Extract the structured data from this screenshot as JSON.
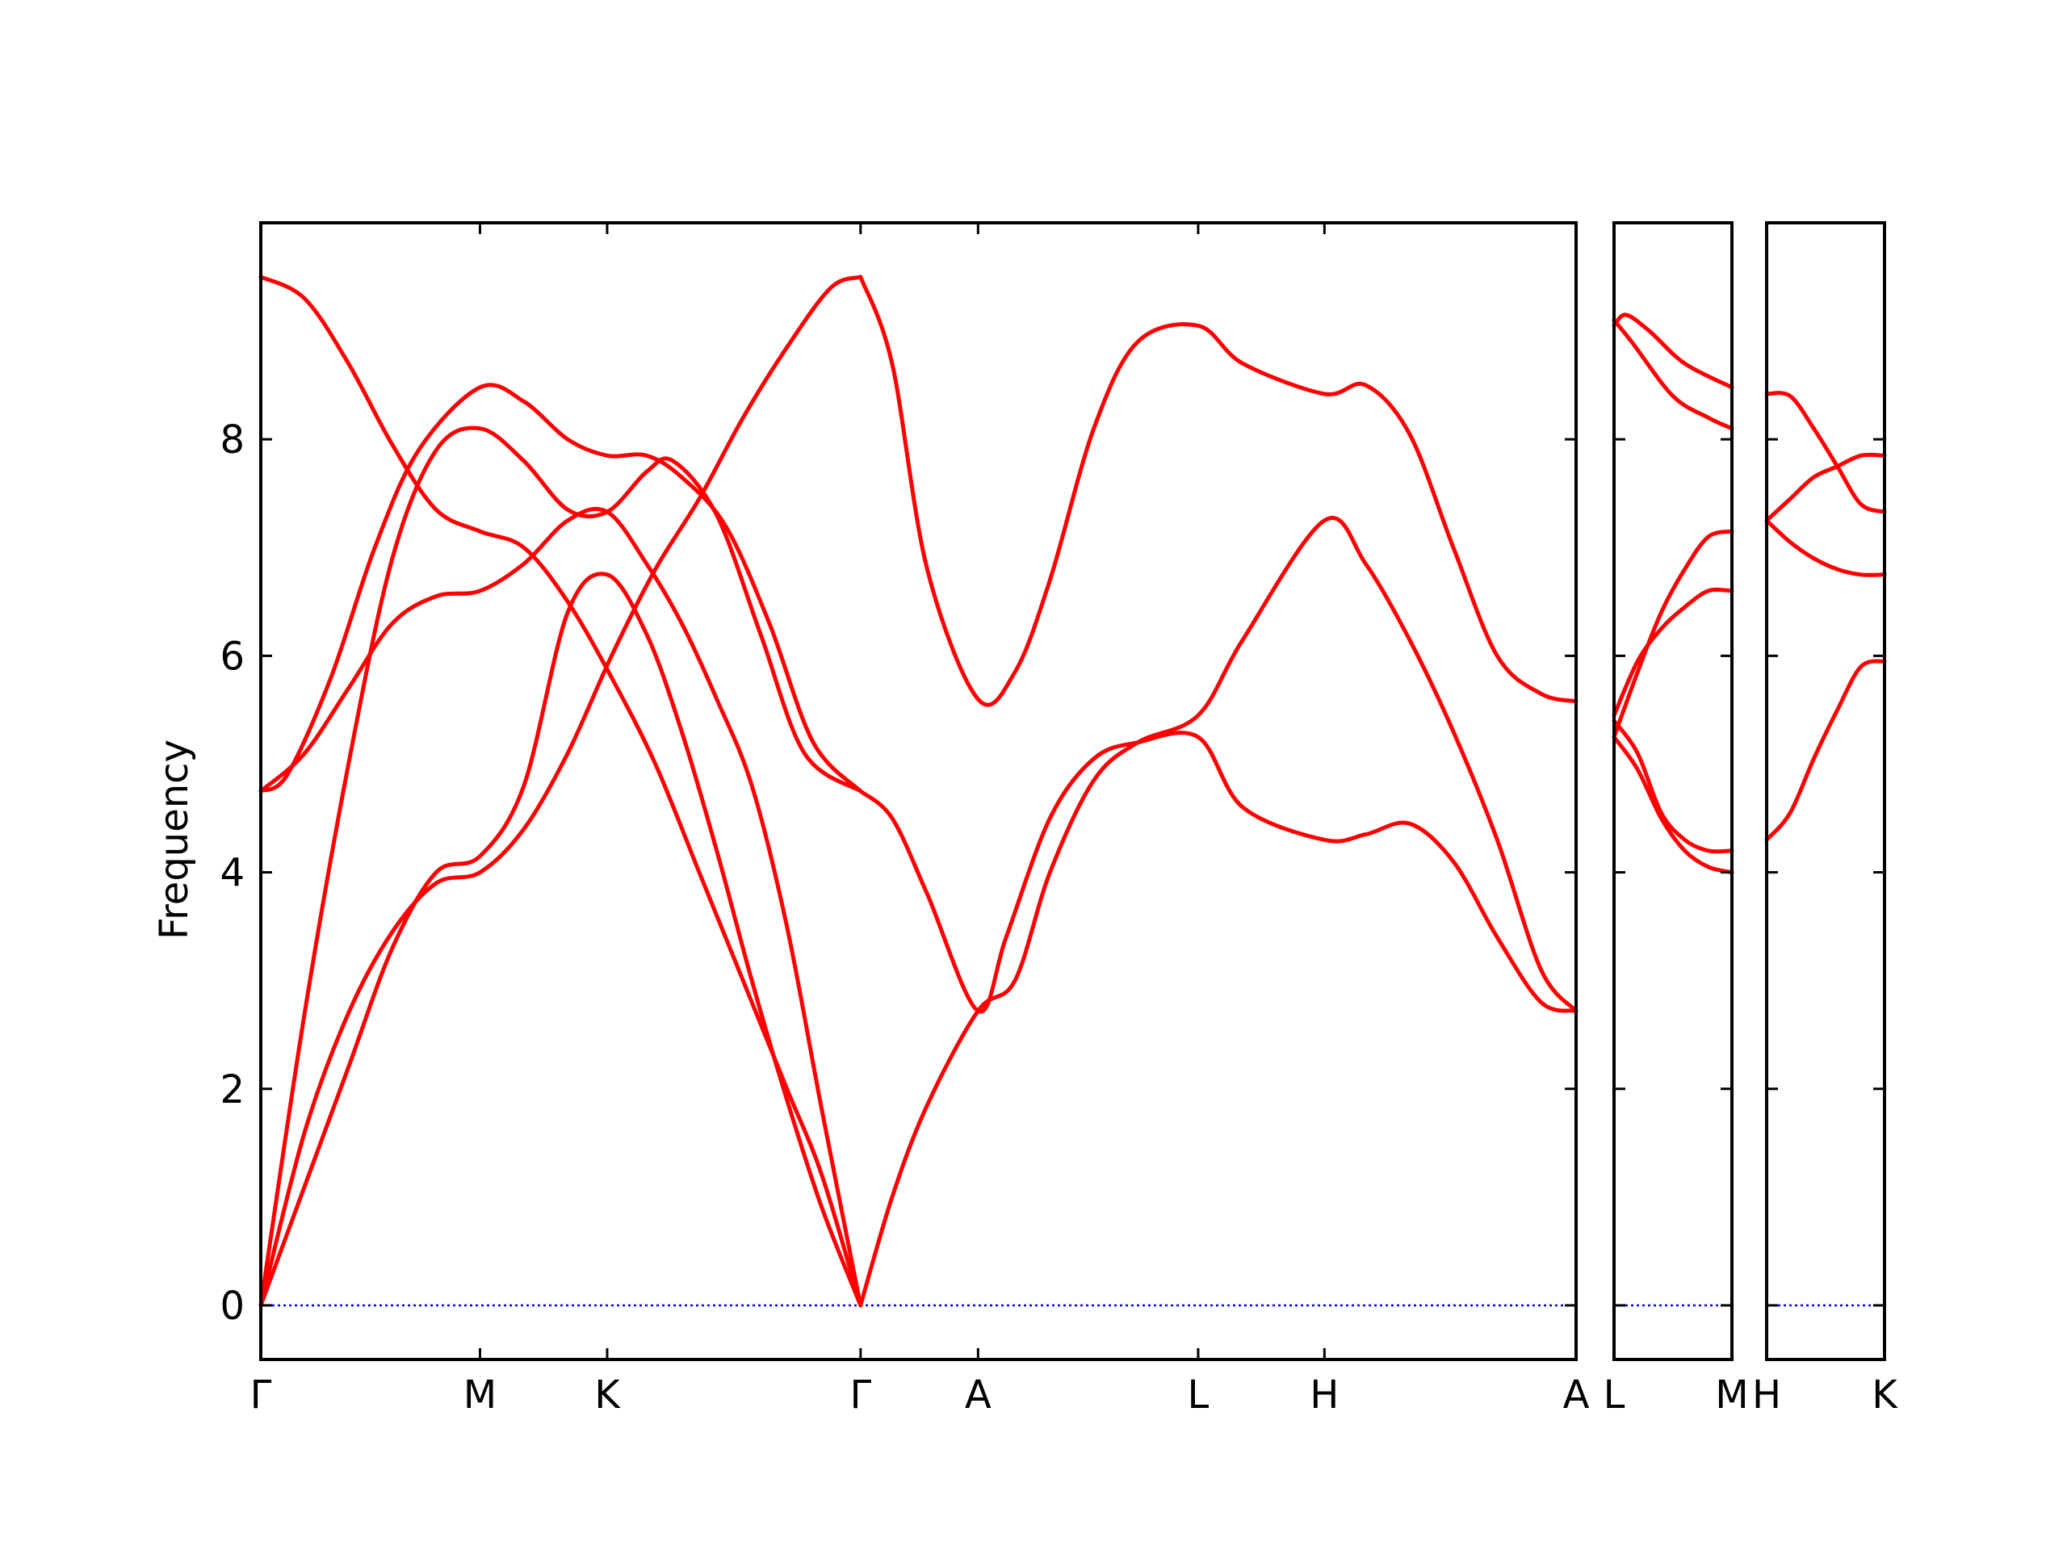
{
  "chart_data": {
    "type": "line",
    "title": "",
    "ylabel": "Frequency",
    "ylim": [
      -0.5,
      10.0
    ],
    "yticks": [
      0,
      2,
      4,
      6,
      8
    ],
    "band_color": "#ff0000",
    "zero_line_color": "#0000ff",
    "panels": [
      {
        "name": "panel-1",
        "xlim": [
          0,
          1.5
        ],
        "ticks": [
          {
            "x": 0.0,
            "label": "Γ"
          },
          {
            "x": 0.25,
            "label": "M"
          },
          {
            "x": 0.395,
            "label": "K"
          },
          {
            "x": 0.684,
            "label": "Γ"
          },
          {
            "x": 0.818,
            "label": "A"
          },
          {
            "x": 1.069,
            "label": "L"
          },
          {
            "x": 1.213,
            "label": "H"
          },
          {
            "x": 1.5,
            "label": "A"
          }
        ],
        "bands": [
          [
            [
              0,
              9.5
            ],
            [
              0.05,
              9.3
            ],
            [
              0.1,
              8.7
            ],
            [
              0.15,
              7.95
            ],
            [
              0.2,
              7.35
            ],
            [
              0.25,
              7.15
            ],
            [
              0.3,
              7.0
            ],
            [
              0.35,
              6.5
            ],
            [
              0.4,
              5.8
            ],
            [
              0.45,
              5.0
            ],
            [
              0.5,
              4.0
            ],
            [
              0.55,
              3.0
            ],
            [
              0.6,
              2.0
            ],
            [
              0.64,
              1.2
            ],
            [
              0.684,
              0
            ]
          ],
          [
            [
              0,
              4.75
            ],
            [
              0.03,
              4.9
            ],
            [
              0.08,
              5.8
            ],
            [
              0.13,
              7.0
            ],
            [
              0.18,
              7.9
            ],
            [
              0.25,
              8.48
            ],
            [
              0.3,
              8.35
            ],
            [
              0.35,
              8.0
            ],
            [
              0.395,
              7.85
            ],
            [
              0.44,
              7.85
            ],
            [
              0.48,
              7.65
            ],
            [
              0.53,
              7.2
            ],
            [
              0.58,
              6.3
            ],
            [
              0.63,
              5.2
            ],
            [
              0.684,
              4.75
            ]
          ],
          [
            [
              0,
              4.75
            ],
            [
              0.05,
              5.1
            ],
            [
              0.1,
              5.7
            ],
            [
              0.15,
              6.3
            ],
            [
              0.2,
              6.55
            ],
            [
              0.25,
              6.6
            ],
            [
              0.3,
              6.85
            ],
            [
              0.35,
              7.25
            ],
            [
              0.395,
              7.33
            ],
            [
              0.44,
              6.85
            ],
            [
              0.48,
              6.3
            ],
            [
              0.52,
              5.6
            ],
            [
              0.56,
              4.8
            ],
            [
              0.6,
              3.5
            ],
            [
              0.64,
              1.8
            ],
            [
              0.684,
              0
            ]
          ],
          [
            [
              0,
              0
            ],
            [
              0.05,
              2.7
            ],
            [
              0.1,
              5.0
            ],
            [
              0.15,
              6.9
            ],
            [
              0.2,
              7.9
            ],
            [
              0.25,
              8.1
            ],
            [
              0.3,
              7.8
            ],
            [
              0.35,
              7.35
            ],
            [
              0.395,
              7.33
            ],
            [
              0.44,
              7.7
            ],
            [
              0.47,
              7.8
            ],
            [
              0.52,
              7.3
            ],
            [
              0.57,
              6.2
            ],
            [
              0.62,
              5.1
            ],
            [
              0.684,
              4.75
            ]
          ],
          [
            [
              0,
              0
            ],
            [
              0.05,
              1.6
            ],
            [
              0.1,
              2.7
            ],
            [
              0.15,
              3.45
            ],
            [
              0.2,
              3.9
            ],
            [
              0.25,
              4.0
            ],
            [
              0.3,
              4.4
            ],
            [
              0.35,
              5.1
            ],
            [
              0.4,
              6.0
            ],
            [
              0.45,
              6.8
            ],
            [
              0.5,
              7.45
            ],
            [
              0.55,
              8.2
            ],
            [
              0.6,
              8.85
            ],
            [
              0.65,
              9.4
            ],
            [
              0.684,
              9.5
            ]
          ],
          [
            [
              0,
              0
            ],
            [
              0.05,
              1.1
            ],
            [
              0.1,
              2.2
            ],
            [
              0.15,
              3.3
            ],
            [
              0.2,
              4.0
            ],
            [
              0.25,
              4.15
            ],
            [
              0.3,
              4.8
            ],
            [
              0.35,
              6.4
            ],
            [
              0.395,
              6.75
            ],
            [
              0.44,
              6.2
            ],
            [
              0.48,
              5.3
            ],
            [
              0.52,
              4.2
            ],
            [
              0.56,
              3.0
            ],
            [
              0.6,
              1.9
            ],
            [
              0.64,
              0.9
            ],
            [
              0.684,
              0
            ]
          ],
          [
            [
              0.684,
              9.5
            ],
            [
              0.72,
              8.7
            ],
            [
              0.76,
              6.8
            ],
            [
              0.818,
              5.6
            ],
            [
              0.86,
              5.85
            ],
            [
              0.9,
              6.7
            ],
            [
              0.95,
              8.1
            ],
            [
              1.0,
              8.9
            ],
            [
              1.069,
              9.05
            ],
            [
              1.12,
              8.7
            ],
            [
              1.213,
              8.42
            ],
            [
              1.26,
              8.5
            ],
            [
              1.31,
              8.05
            ],
            [
              1.36,
              7.0
            ],
            [
              1.41,
              6.0
            ],
            [
              1.46,
              5.65
            ],
            [
              1.5,
              5.58
            ]
          ],
          [
            [
              0.684,
              4.75
            ],
            [
              0.72,
              4.5
            ],
            [
              0.76,
              3.8
            ],
            [
              0.818,
              2.72
            ],
            [
              0.85,
              3.4
            ],
            [
              0.9,
              4.5
            ],
            [
              0.95,
              5.05
            ],
            [
              1.0,
              5.2
            ],
            [
              1.069,
              5.25
            ],
            [
              1.12,
              4.6
            ],
            [
              1.213,
              4.3
            ],
            [
              1.26,
              4.35
            ],
            [
              1.31,
              4.45
            ],
            [
              1.36,
              4.1
            ],
            [
              1.41,
              3.4
            ],
            [
              1.46,
              2.8
            ],
            [
              1.5,
              2.72
            ]
          ],
          [
            [
              0.684,
              0
            ],
            [
              0.72,
              1.0
            ],
            [
              0.76,
              1.85
            ],
            [
              0.818,
              2.72
            ],
            [
              0.86,
              3.0
            ],
            [
              0.9,
              4.0
            ],
            [
              0.95,
              4.85
            ],
            [
              1.0,
              5.2
            ],
            [
              1.069,
              5.45
            ],
            [
              1.12,
              6.15
            ],
            [
              1.213,
              7.25
            ],
            [
              1.26,
              6.85
            ],
            [
              1.31,
              6.15
            ],
            [
              1.36,
              5.3
            ],
            [
              1.41,
              4.3
            ],
            [
              1.46,
              3.1
            ],
            [
              1.5,
              2.72
            ]
          ]
        ]
      },
      {
        "name": "panel-2",
        "xlim": [
          0,
          1
        ],
        "ticks": [
          {
            "x": 0.0,
            "label": "L"
          },
          {
            "x": 1.0,
            "label": "M"
          }
        ],
        "bands": [
          [
            [
              0,
              9.05
            ],
            [
              0.1,
              9.15
            ],
            [
              0.3,
              9.0
            ],
            [
              0.6,
              8.7
            ],
            [
              1.0,
              8.48
            ]
          ],
          [
            [
              0,
              9.1
            ],
            [
              0.15,
              8.9
            ],
            [
              0.5,
              8.4
            ],
            [
              0.8,
              8.2
            ],
            [
              1.0,
              8.1
            ]
          ],
          [
            [
              0,
              5.25
            ],
            [
              0.2,
              5.85
            ],
            [
              0.4,
              6.4
            ],
            [
              0.6,
              6.8
            ],
            [
              0.8,
              7.1
            ],
            [
              1.0,
              7.15
            ]
          ],
          [
            [
              0,
              5.45
            ],
            [
              0.2,
              5.95
            ],
            [
              0.4,
              6.25
            ],
            [
              0.6,
              6.45
            ],
            [
              0.8,
              6.6
            ],
            [
              1.0,
              6.6
            ]
          ],
          [
            [
              0,
              5.4
            ],
            [
              0.2,
              5.1
            ],
            [
              0.4,
              4.55
            ],
            [
              0.6,
              4.3
            ],
            [
              0.8,
              4.2
            ],
            [
              1.0,
              4.2
            ]
          ],
          [
            [
              0,
              5.25
            ],
            [
              0.2,
              4.95
            ],
            [
              0.4,
              4.5
            ],
            [
              0.6,
              4.2
            ],
            [
              0.8,
              4.05
            ],
            [
              1.0,
              4.0
            ]
          ]
        ]
      },
      {
        "name": "panel-3",
        "xlim": [
          0,
          1
        ],
        "ticks": [
          {
            "x": 0.0,
            "label": "H"
          },
          {
            "x": 1.0,
            "label": "K"
          }
        ],
        "bands": [
          [
            [
              0,
              8.42
            ],
            [
              0.2,
              8.4
            ],
            [
              0.4,
              8.1
            ],
            [
              0.6,
              7.75
            ],
            [
              0.8,
              7.4
            ],
            [
              1.0,
              7.33
            ]
          ],
          [
            [
              0,
              7.25
            ],
            [
              0.2,
              7.45
            ],
            [
              0.4,
              7.65
            ],
            [
              0.6,
              7.75
            ],
            [
              0.8,
              7.85
            ],
            [
              1.0,
              7.85
            ]
          ],
          [
            [
              0,
              7.25
            ],
            [
              0.2,
              7.05
            ],
            [
              0.4,
              6.9
            ],
            [
              0.6,
              6.8
            ],
            [
              0.8,
              6.75
            ],
            [
              1.0,
              6.75
            ]
          ],
          [
            [
              0,
              4.3
            ],
            [
              0.2,
              4.55
            ],
            [
              0.4,
              5.05
            ],
            [
              0.6,
              5.5
            ],
            [
              0.8,
              5.9
            ],
            [
              1.0,
              5.95
            ]
          ]
        ]
      }
    ]
  }
}
